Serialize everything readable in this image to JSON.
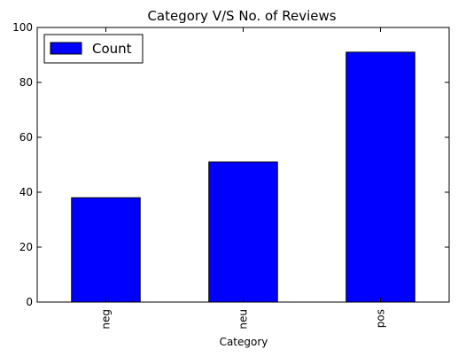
{
  "chart_data": {
    "type": "bar",
    "title": "Category V/S No. of Reviews",
    "xlabel": "Category",
    "ylabel": "",
    "categories": [
      "neg",
      "neu",
      "pos"
    ],
    "series": [
      {
        "name": "Count",
        "values": [
          38,
          51,
          91
        ],
        "color": "#0000ff"
      }
    ],
    "ylim": [
      0,
      100
    ],
    "yticks": [
      0,
      20,
      40,
      60,
      80,
      100
    ],
    "legend": "top-left",
    "grid": false
  }
}
